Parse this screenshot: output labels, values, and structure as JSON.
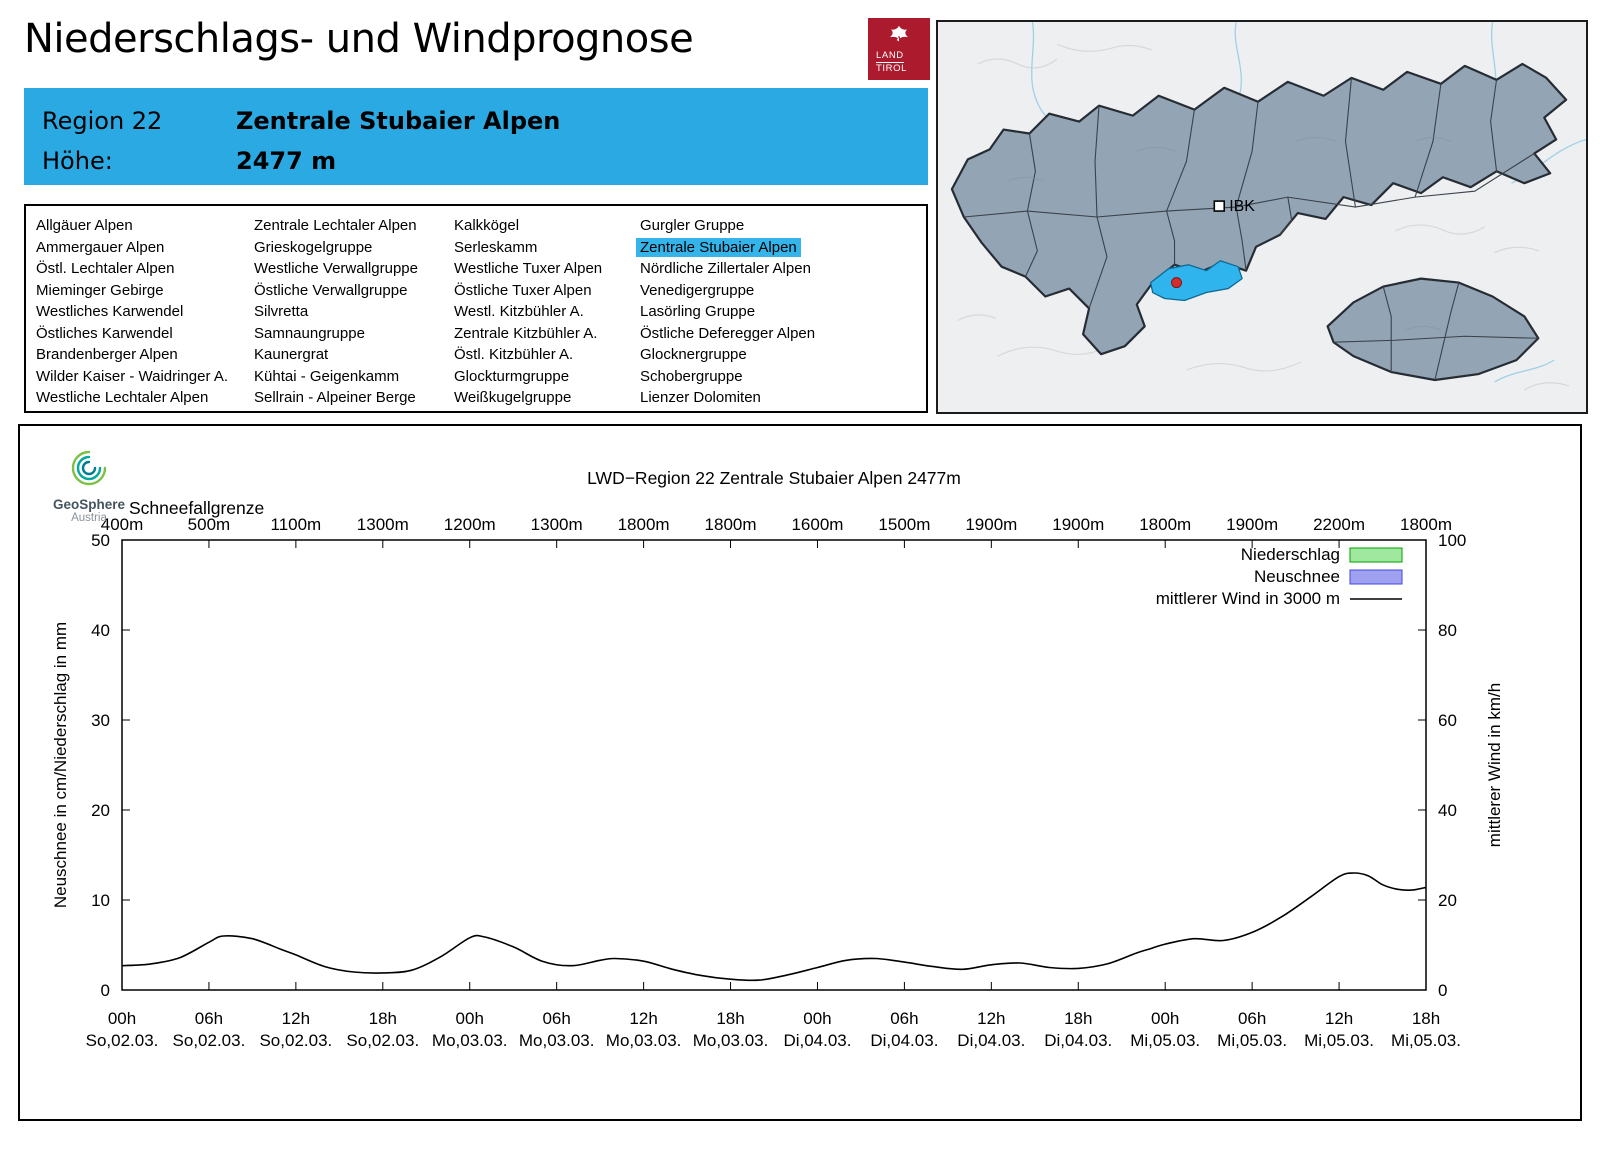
{
  "page": {
    "title": "Niederschlags- und Windprognose"
  },
  "logo": {
    "line1": "LAND",
    "line2": "TIROL",
    "color": "#AB1A2D"
  },
  "region_header": {
    "bg": "#2BA9E2",
    "rows": [
      {
        "label": "Region 22",
        "value": "Zentrale Stubaier Alpen"
      },
      {
        "label": "Höhe:",
        "value": "2477 m"
      }
    ]
  },
  "region_list": {
    "selected": "Zentrale Stubaier Alpen",
    "highlight_color": "#35B4EA",
    "columns": [
      [
        "Allgäuer Alpen",
        "Ammergauer Alpen",
        "Östl. Lechtaler Alpen",
        "Mieminger Gebirge",
        "Westliches Karwendel",
        "Östliches Karwendel",
        "Brandenberger Alpen",
        "Wilder Kaiser - Waidringer A.",
        "Westliche Lechtaler Alpen"
      ],
      [
        "Zentrale Lechtaler Alpen",
        "Grieskogelgruppe",
        "Westliche Verwallgruppe",
        "Östliche Verwallgruppe",
        "Silvretta",
        "Samnaungruppe",
        "Kaunergrat",
        "Kühtai - Geigenkamm",
        "Sellrain - Alpeiner Berge"
      ],
      [
        "Kalkkögel",
        "Serleskamm",
        "Westliche Tuxer Alpen",
        "Östliche Tuxer Alpen",
        "Westl. Kitzbühler A.",
        "Zentrale Kitzbühler A.",
        "Östl. Kitzbühler A.",
        "Glockturmgruppe",
        "Weißkugelgruppe"
      ],
      [
        "Gurgler Gruppe",
        "Zentrale Stubaier Alpen",
        "Nördliche Zillertaler Alpen",
        "Venedigergruppe",
        "Lasörling Gruppe",
        "Östliche Deferegger Alpen",
        "Glocknergruppe",
        "Schobergruppe",
        "Lienzer Dolomiten"
      ]
    ]
  },
  "map": {
    "ibk_label": "IBK",
    "region_fill": "#93A4B5",
    "highlight_fill": "#2FB4EE",
    "marker_color": "#D42B2B"
  },
  "geosphere": {
    "name": "GeoSphere",
    "country": "Austria"
  },
  "chart_data": {
    "type": "line",
    "title": "LWD−Region 22 Zentrale Stubaier Alpen 2477m",
    "snowline_label": "Schneefallgrenze",
    "snowline_values": [
      "400m",
      "500m",
      "1100m",
      "1300m",
      "1200m",
      "1300m",
      "1800m",
      "1800m",
      "1600m",
      "1500m",
      "1900m",
      "1900m",
      "1800m",
      "1900m",
      "2200m",
      "1800m"
    ],
    "x_unit": "hours from So,02.03. 00h",
    "x_hours_range": [
      0,
      90
    ],
    "x_tick_step_hours": 6,
    "x_tick_labels": [
      {
        "time": "00h",
        "date": "So,02.03."
      },
      {
        "time": "06h",
        "date": "So,02.03."
      },
      {
        "time": "12h",
        "date": "So,02.03."
      },
      {
        "time": "18h",
        "date": "So,02.03."
      },
      {
        "time": "00h",
        "date": "Mo,03.03."
      },
      {
        "time": "06h",
        "date": "Mo,03.03."
      },
      {
        "time": "12h",
        "date": "Mo,03.03."
      },
      {
        "time": "18h",
        "date": "Mo,03.03."
      },
      {
        "time": "00h",
        "date": "Di,04.03."
      },
      {
        "time": "06h",
        "date": "Di,04.03."
      },
      {
        "time": "12h",
        "date": "Di,04.03."
      },
      {
        "time": "18h",
        "date": "Di,04.03."
      },
      {
        "time": "00h",
        "date": "Mi,05.03."
      },
      {
        "time": "06h",
        "date": "Mi,05.03."
      },
      {
        "time": "12h",
        "date": "Mi,05.03."
      },
      {
        "time": "18h",
        "date": "Mi,05.03."
      }
    ],
    "ylabel_left": "Neuschnee in cm/Niederschlag in mm",
    "ylabel_right": "mittlerer Wind in km/h",
    "ylim_left": [
      0,
      50
    ],
    "ylim_right": [
      0,
      100
    ],
    "yticks_left": [
      0,
      10,
      20,
      30,
      40,
      50
    ],
    "yticks_right": [
      0,
      20,
      40,
      60,
      80,
      100
    ],
    "grid": false,
    "legend_position": "top-right-inside",
    "legend": [
      {
        "label": "Niederschlag",
        "type": "box",
        "fill": "#A0E8A0",
        "border": "#00A000"
      },
      {
        "label": "Neuschnee",
        "type": "box",
        "fill": "#A0A0F0",
        "border": "#4048D8"
      },
      {
        "label": "mittlerer Wind in 3000 m",
        "type": "line",
        "color": "#000000"
      }
    ],
    "series": [
      {
        "name": "Niederschlag",
        "unit": "mm",
        "axis": "left",
        "values": []
      },
      {
        "name": "Neuschnee",
        "unit": "cm",
        "axis": "left",
        "values": []
      },
      {
        "name": "mittlerer Wind in 3000 m",
        "unit": "km/h",
        "axis": "right",
        "points": [
          [
            0,
            5.4
          ],
          [
            2,
            5.8
          ],
          [
            4,
            7.2
          ],
          [
            6,
            10.6
          ],
          [
            7,
            12.0
          ],
          [
            9,
            11.4
          ],
          [
            11,
            9.0
          ],
          [
            12,
            7.8
          ],
          [
            14,
            5.2
          ],
          [
            16,
            4.0
          ],
          [
            18,
            3.8
          ],
          [
            20,
            4.4
          ],
          [
            22,
            7.4
          ],
          [
            24,
            11.6
          ],
          [
            25,
            11.8
          ],
          [
            27,
            9.6
          ],
          [
            29,
            6.4
          ],
          [
            31,
            5.4
          ],
          [
            33,
            6.6
          ],
          [
            34,
            7.0
          ],
          [
            36,
            6.4
          ],
          [
            38,
            4.6
          ],
          [
            40,
            3.2
          ],
          [
            42,
            2.4
          ],
          [
            44,
            2.2
          ],
          [
            46,
            3.4
          ],
          [
            48,
            5.0
          ],
          [
            50,
            6.6
          ],
          [
            52,
            7.0
          ],
          [
            54,
            6.2
          ],
          [
            56,
            5.2
          ],
          [
            58,
            4.6
          ],
          [
            60,
            5.6
          ],
          [
            62,
            6.0
          ],
          [
            64,
            5.0
          ],
          [
            66,
            4.8
          ],
          [
            68,
            5.8
          ],
          [
            70,
            8.2
          ],
          [
            71,
            9.2
          ],
          [
            72,
            10.2
          ],
          [
            74,
            11.4
          ],
          [
            76,
            11.0
          ],
          [
            78,
            12.8
          ],
          [
            80,
            16.2
          ],
          [
            82,
            20.6
          ],
          [
            84,
            25.2
          ],
          [
            85,
            26.0
          ],
          [
            86,
            25.4
          ],
          [
            87,
            23.4
          ],
          [
            88,
            22.4
          ],
          [
            89,
            22.2
          ],
          [
            90,
            22.8
          ]
        ]
      }
    ]
  }
}
